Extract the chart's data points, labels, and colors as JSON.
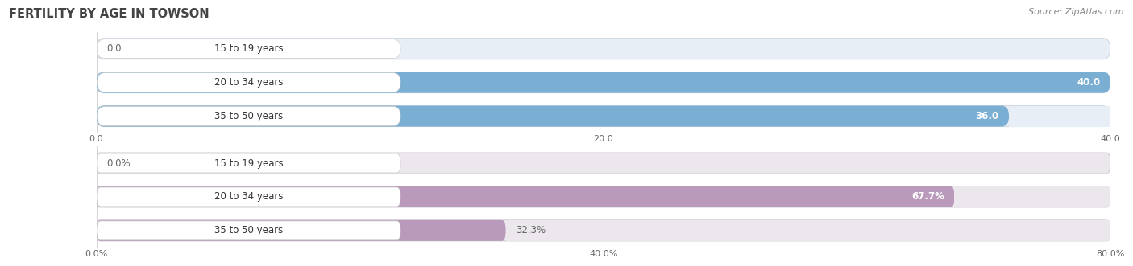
{
  "title": "FERTILITY BY AGE IN TOWSON",
  "source": "Source: ZipAtlas.com",
  "top_chart": {
    "categories": [
      "15 to 19 years",
      "20 to 34 years",
      "35 to 50 years"
    ],
    "values": [
      0.0,
      40.0,
      36.0
    ],
    "xlim": [
      0,
      40
    ],
    "xticks": [
      0.0,
      20.0,
      40.0
    ],
    "bar_color": "#7aaed3",
    "bar_bg_color": "#e8eef5",
    "bar_bg_edge": "#d0d8e4",
    "value_inside_color": "white",
    "value_outside_color": "#666666"
  },
  "bottom_chart": {
    "categories": [
      "15 to 19 years",
      "20 to 34 years",
      "35 to 50 years"
    ],
    "values": [
      0.0,
      67.7,
      32.3
    ],
    "xlim": [
      0,
      80
    ],
    "xticks": [
      0.0,
      40.0,
      80.0
    ],
    "xtick_labels": [
      "0.0%",
      "40.0%",
      "80.0%"
    ],
    "bar_color": "#b99abb",
    "bar_bg_color": "#ece7ed",
    "bar_bg_edge": "#d4cdd5",
    "value_inside_color": "white",
    "value_outside_color": "#666666"
  },
  "label_color": "#333333",
  "title_color": "#444444",
  "source_color": "#888888",
  "fig_bg_color": "#ffffff"
}
